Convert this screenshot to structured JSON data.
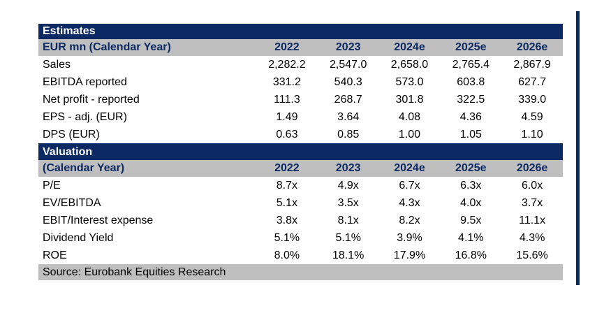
{
  "estimates": {
    "title": "Estimates",
    "header": [
      "EUR mn (Calendar Year)",
      "2022",
      "2023",
      "2024e",
      "2025e",
      "2026e"
    ],
    "rows": [
      {
        "label": "Sales",
        "values": [
          "2,282.2",
          "2,547.0",
          "2,658.0",
          "2,765.4",
          "2,867.9"
        ]
      },
      {
        "label": "EBITDA reported",
        "values": [
          "331.2",
          "540.3",
          "573.0",
          "603.8",
          "627.7"
        ]
      },
      {
        "label": "Net profit - reported",
        "values": [
          "111.3",
          "268.7",
          "301.8",
          "322.5",
          "339.0"
        ]
      },
      {
        "label": "EPS - adj. (EUR)",
        "values": [
          "1.49",
          "3.64",
          "4.08",
          "4.36",
          "4.59"
        ]
      },
      {
        "label": "DPS (EUR)",
        "values": [
          "0.63",
          "0.85",
          "1.00",
          "1.05",
          "1.10"
        ]
      }
    ]
  },
  "valuation": {
    "title": "Valuation",
    "header": [
      "(Calendar Year)",
      "2022",
      "2023",
      "2024e",
      "2025e",
      "2026e"
    ],
    "rows": [
      {
        "label": "P/E",
        "values": [
          "8.7x",
          "4.9x",
          "6.7x",
          "6.3x",
          "6.0x"
        ]
      },
      {
        "label": "EV/EBITDA",
        "values": [
          "5.1x",
          "3.5x",
          "4.3x",
          "4.0x",
          "3.7x"
        ]
      },
      {
        "label": "EBIT/Interest expense",
        "values": [
          "3.8x",
          "8.1x",
          "8.2x",
          "9.5x",
          "11.1x"
        ]
      },
      {
        "label": "Dividend Yield",
        "values": [
          "5.1%",
          "5.1%",
          "3.9%",
          "4.1%",
          "4.3%"
        ]
      },
      {
        "label": "ROE",
        "values": [
          "8.0%",
          "18.1%",
          "17.9%",
          "16.8%",
          "15.6%"
        ]
      }
    ]
  },
  "source": "Source: Eurobank Equities Research",
  "colors": {
    "navy": "#0b2a63",
    "grey": "#bfbfbf"
  }
}
